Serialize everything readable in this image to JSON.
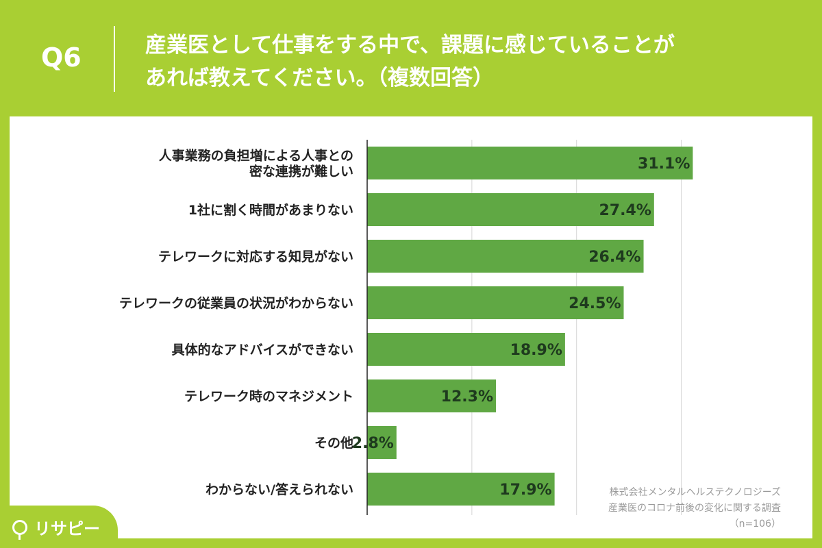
{
  "header": {
    "qnum": "Q6",
    "question_line1": "産業医として仕事をする中で、課題に感じていることが",
    "question_line2": "あれば教えてください。（複数回答）"
  },
  "source": {
    "line1": "株式会社メンタルヘルステクノロジーズ",
    "line2": "産業医のコロナ前後の変化に関する調査",
    "line3": "（n=106）"
  },
  "logo": {
    "text": "リサピー"
  },
  "colors": {
    "background": "#a9cf33",
    "bar": "#60a844",
    "panel": "#ffffff"
  },
  "chart_data": {
    "type": "bar",
    "orientation": "horizontal",
    "categories": [
      [
        "人事業務の負担増による人事との",
        "密な連携が難しい"
      ],
      [
        "1社に割く時間があまりない"
      ],
      [
        "テレワークに対応する知見がない"
      ],
      [
        "テレワークの従業員の状況がわからない"
      ],
      [
        "具体的なアドバイスができない"
      ],
      [
        "テレワーク時のマネジメント"
      ],
      [
        "その他"
      ],
      [
        "わからない/答えられない"
      ]
    ],
    "values": [
      31.1,
      27.4,
      26.4,
      24.5,
      18.9,
      12.3,
      2.8,
      17.9
    ],
    "value_labels": [
      "31.1%",
      "27.4%",
      "26.4%",
      "24.5%",
      "18.9%",
      "12.3%",
      "2.8%",
      "17.9%"
    ],
    "xlim": [
      0,
      35
    ],
    "grid": true
  }
}
